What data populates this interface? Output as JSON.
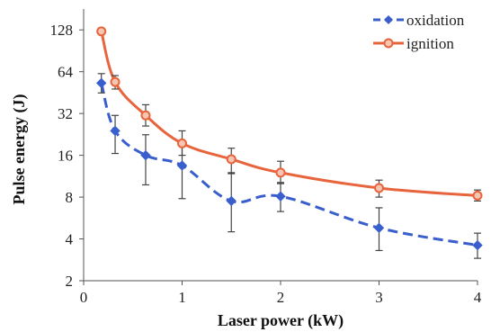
{
  "chart_data": {
    "type": "line",
    "xlabel": "Laser power (kW)",
    "ylabel": "Pulse energy (J)",
    "xlim": [
      0,
      4
    ],
    "ylim": [
      2,
      181
    ],
    "yscale": "log2",
    "grid": false,
    "legend_position": "top-right",
    "x_ticks": [
      0,
      1,
      2,
      3,
      4
    ],
    "x_tick_labels": [
      "0",
      "1",
      "2",
      "3",
      "4"
    ],
    "y_ticks": [
      2,
      4,
      8,
      16,
      32,
      64,
      128
    ],
    "y_tick_labels": [
      "2",
      "4",
      "8",
      "16",
      "32",
      "64",
      "128"
    ],
    "series": [
      {
        "name": "oxidation",
        "color": "#3a5fcd",
        "line_style": "dashed",
        "marker": "diamond",
        "x": [
          0.18,
          0.32,
          0.63,
          1.0,
          1.5,
          2.0,
          3.0,
          4.0
        ],
        "y": [
          53,
          24,
          16,
          13.5,
          7.5,
          8.1,
          4.8,
          3.6
        ],
        "err_low": [
          45,
          16.5,
          9.8,
          7.8,
          4.5,
          6.3,
          3.3,
          2.9
        ],
        "err_high": [
          62,
          31,
          22.5,
          19.5,
          11.8,
          10.2,
          6.7,
          4.4
        ]
      },
      {
        "name": "ignition",
        "color": "#e8643c",
        "line_style": "solid",
        "marker": "circle",
        "x": [
          0.18,
          0.32,
          0.63,
          1.0,
          1.5,
          2.0,
          3.0,
          4.0
        ],
        "y": [
          125,
          54,
          31,
          19.5,
          15,
          12,
          9.3,
          8.2
        ],
        "err_low": [
          120,
          48,
          26,
          16,
          12,
          10,
          8,
          7.5
        ],
        "err_high": [
          130,
          60,
          37,
          24,
          18,
          14.5,
          10.6,
          9
        ]
      }
    ]
  }
}
